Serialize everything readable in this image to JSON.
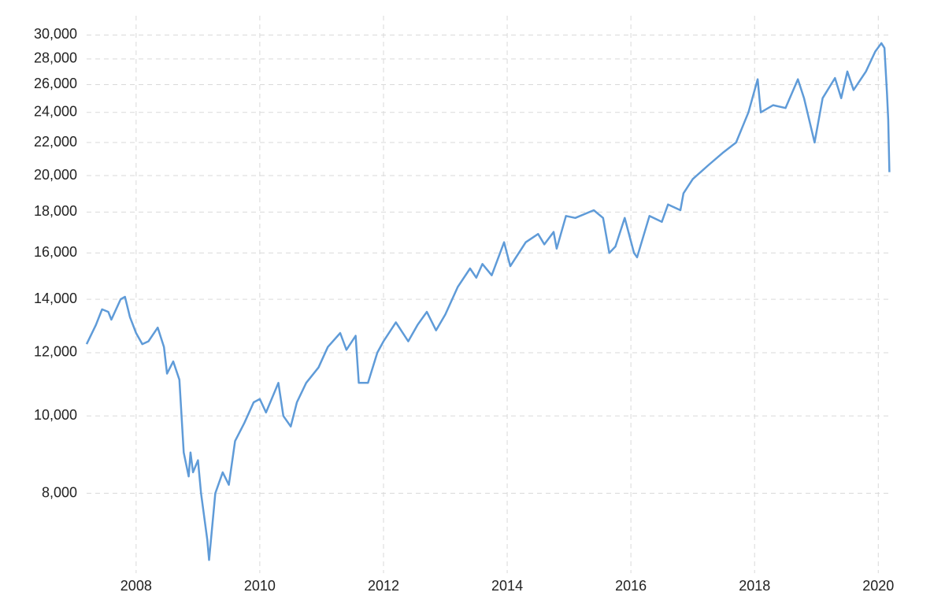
{
  "chart_data": {
    "type": "line",
    "x": [
      2007.2,
      2007.35,
      2007.45,
      2007.55,
      2007.6,
      2007.75,
      2007.82,
      2007.9,
      2008.0,
      2008.1,
      2008.2,
      2008.35,
      2008.45,
      2008.5,
      2008.6,
      2008.7,
      2008.77,
      2008.85,
      2008.88,
      2008.92,
      2009.0,
      2009.05,
      2009.15,
      2009.18,
      2009.28,
      2009.4,
      2009.5,
      2009.6,
      2009.75,
      2009.9,
      2010.0,
      2010.1,
      2010.3,
      2010.38,
      2010.5,
      2010.6,
      2010.75,
      2010.95,
      2011.1,
      2011.3,
      2011.4,
      2011.55,
      2011.6,
      2011.75,
      2011.9,
      2012.0,
      2012.2,
      2012.4,
      2012.55,
      2012.7,
      2012.85,
      2013.0,
      2013.2,
      2013.4,
      2013.5,
      2013.6,
      2013.75,
      2013.95,
      2014.05,
      2014.3,
      2014.5,
      2014.6,
      2014.75,
      2014.8,
      2014.95,
      2015.1,
      2015.4,
      2015.55,
      2015.65,
      2015.75,
      2015.9,
      2016.05,
      2016.1,
      2016.3,
      2016.5,
      2016.6,
      2016.8,
      2016.85,
      2017.0,
      2017.25,
      2017.5,
      2017.7,
      2017.9,
      2018.05,
      2018.1,
      2018.3,
      2018.5,
      2018.7,
      2018.8,
      2018.97,
      2019.1,
      2019.3,
      2019.4,
      2019.5,
      2019.6,
      2019.8,
      2019.95,
      2020.05,
      2020.1,
      2020.14,
      2020.16,
      2020.18
    ],
    "series": [
      {
        "color": "#5f9bd8",
        "values": [
          12300,
          13000,
          13600,
          13500,
          13200,
          14000,
          14100,
          13300,
          12700,
          12300,
          12400,
          12900,
          12200,
          11300,
          11700,
          11100,
          9000,
          8400,
          9000,
          8500,
          8800,
          8000,
          7000,
          6600,
          8000,
          8500,
          8200,
          9300,
          9800,
          10400,
          10500,
          10100,
          11000,
          10000,
          9700,
          10400,
          11000,
          11500,
          12200,
          12700,
          12100,
          12600,
          11000,
          11000,
          12000,
          12400,
          13100,
          12400,
          13000,
          13500,
          12800,
          13400,
          14500,
          15300,
          14900,
          15500,
          15000,
          16500,
          15400,
          16500,
          16900,
          16400,
          17000,
          16200,
          17800,
          17700,
          18100,
          17700,
          16000,
          16300,
          17700,
          16000,
          15800,
          17800,
          17500,
          18400,
          18100,
          19000,
          19800,
          20600,
          21400,
          22000,
          24000,
          26400,
          24000,
          24500,
          24300,
          26400,
          25000,
          22000,
          25000,
          26500,
          25000,
          27000,
          25600,
          27000,
          28600,
          29300,
          28900,
          25400,
          23500,
          20200
        ]
      }
    ],
    "xlim": [
      2007.2,
      2020.2
    ],
    "xticks": [
      2008,
      2010,
      2012,
      2014,
      2016,
      2018,
      2020
    ],
    "ylim": [
      6500,
      31000
    ],
    "yscale": "log",
    "yticks": [
      {
        "value": 8000,
        "label": "8,000"
      },
      {
        "value": 10000,
        "label": "10,000"
      },
      {
        "value": 12000,
        "label": "12,000"
      },
      {
        "value": 14000,
        "label": "14,000"
      },
      {
        "value": 16000,
        "label": "16,000"
      },
      {
        "value": 18000,
        "label": "18,000"
      },
      {
        "value": 20000,
        "label": "20,000"
      },
      {
        "value": 22000,
        "label": "22,000"
      },
      {
        "value": 24000,
        "label": "24,000"
      },
      {
        "value": 26000,
        "label": "26,000"
      },
      {
        "value": 28000,
        "label": "28,000"
      },
      {
        "value": 30000,
        "label": "30,000"
      }
    ],
    "grid": true
  }
}
